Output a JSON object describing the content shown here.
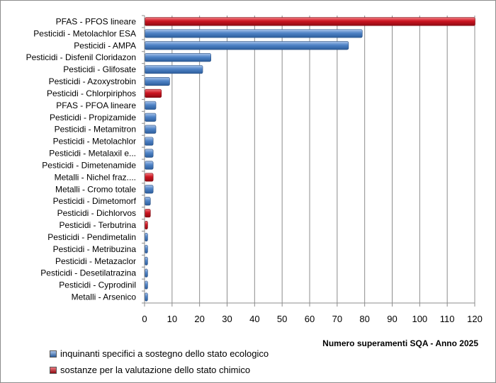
{
  "chart_data": {
    "type": "bar",
    "orientation": "horizontal",
    "categories": [
      "PFAS - PFOS lineare",
      "Pesticidi - Metolachlor ESA",
      "Pesticidi - AMPA",
      "Pesticidi - Disfenil Cloridazon",
      "Pesticidi - Glifosate",
      "Pesticidi - Azoxystrobin",
      "Pesticidi - Chlorpiriphos",
      "PFAS - PFOA lineare",
      "Pesticidi - Propizamide",
      "Pesticidi - Metamitron",
      "Pesticidi - Metolachlor",
      "Pesticidi - Metalaxil e...",
      "Pesticidi - Dimetenamide",
      "Metalli - Nichel fraz....",
      "Metalli - Cromo totale",
      "Pesticidi - Dimetomorf",
      "Pesticidi - Dichlorvos",
      "Pesticidi - Terbutrina",
      "Pesticidi - Pendimetalin",
      "Pesticidi - Metribuzina",
      "Pesticidi - Metazaclor",
      "Pesticidi - Desetilatrazina",
      "Pesticidi - Cyprodinil",
      "Metalli - Arsenico"
    ],
    "values": [
      120,
      79,
      74,
      24,
      21,
      9,
      6,
      4,
      4,
      4,
      3,
      3,
      3,
      3,
      3,
      2,
      2,
      1,
      1,
      1,
      1,
      1,
      1,
      1
    ],
    "groups": [
      "chimico",
      "ecologico",
      "ecologico",
      "ecologico",
      "ecologico",
      "ecologico",
      "chimico",
      "ecologico",
      "ecologico",
      "ecologico",
      "ecologico",
      "ecologico",
      "ecologico",
      "chimico",
      "ecologico",
      "ecologico",
      "chimico",
      "chimico",
      "ecologico",
      "ecologico",
      "ecologico",
      "ecologico",
      "ecologico",
      "ecologico"
    ],
    "series": [
      {
        "key": "ecologico",
        "name": "inquinanti specifici a sostegno dello stato ecologico",
        "color": "#4a7ebb"
      },
      {
        "key": "chimico",
        "name": "sostanze per la valutazione dello stato chimico",
        "color": "#c0111c"
      }
    ],
    "xlim": [
      0,
      120
    ],
    "xticks": [
      0,
      10,
      20,
      30,
      40,
      50,
      60,
      70,
      80,
      90,
      100,
      110,
      120
    ],
    "xlabel": "Numero superamenti SQA - Anno 2025",
    "grid": "vertical",
    "legend_position": "bottom-left"
  }
}
